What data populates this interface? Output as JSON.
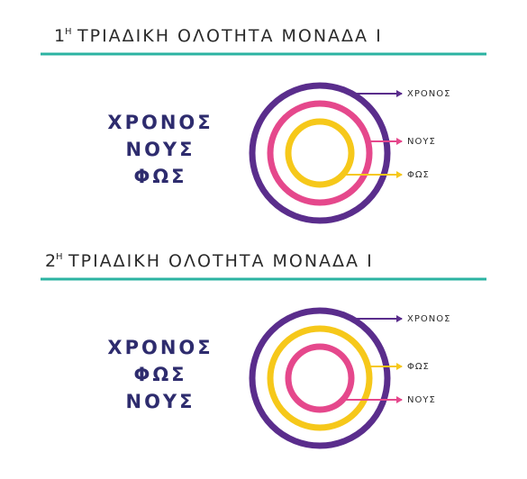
{
  "sections": [
    {
      "ordinal": "1",
      "ordinal_suffix": "Η",
      "title": "ΤΡΙΑΔΙΚΗ ΟΛΟΤΗΤΑ ΜΟΝΑΔΑ Ι",
      "words": [
        "ΧΡΟΝΟΣ",
        "ΝΟΥΣ",
        "ΦΩΣ"
      ],
      "rings": [
        {
          "label": "ΧΡΟΝΟΣ",
          "color": "#5a2d8c"
        },
        {
          "label": "ΝΟΥΣ",
          "color": "#e5488c"
        },
        {
          "label": "ΦΩΣ",
          "color": "#f6c81a"
        }
      ]
    },
    {
      "ordinal": "2",
      "ordinal_suffix": "Η",
      "title": "ΤΡΙΑΔΙΚΗ ΟΛΟΤΗΤΑ ΜΟΝΑΔΑ Ι",
      "words": [
        "ΧΡΟΝΟΣ",
        "ΦΩΣ",
        "ΝΟΥΣ"
      ],
      "rings": [
        {
          "label": "ΧΡΟΝΟΣ",
          "color": "#5a2d8c"
        },
        {
          "label": "ΦΩΣ",
          "color": "#f6c81a"
        },
        {
          "label": "ΝΟΥΣ",
          "color": "#e5488c"
        }
      ]
    }
  ]
}
